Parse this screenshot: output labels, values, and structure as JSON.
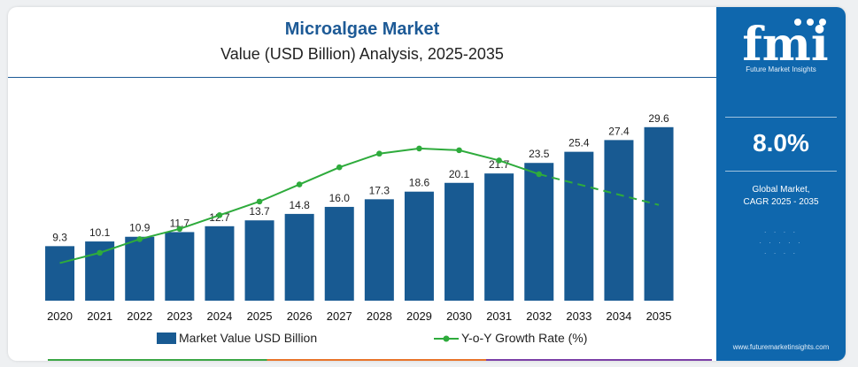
{
  "header": {
    "title": "Microalgae Market",
    "subtitle": "Value (USD Billion) Analysis, 2025-2035"
  },
  "side_panel": {
    "logo_text": "fmi",
    "logo_caption": "Future Market Insights",
    "cagr_value": "8.0%",
    "cagr_label_line1": "Global Market,",
    "cagr_label_line2": "CAGR 2025 - 2035",
    "website": "www.futuremarketinsights.com",
    "background_color": "#0f67ad"
  },
  "colors": {
    "bar": "#185a92",
    "line": "#2eab3c",
    "title": "#1d5a96"
  },
  "chart_data": {
    "type": "bar",
    "categories": [
      "2020",
      "2021",
      "2022",
      "2023",
      "2024",
      "2025",
      "2026",
      "2027",
      "2028",
      "2029",
      "2030",
      "2031",
      "2032",
      "2033",
      "2034",
      "2035"
    ],
    "series": [
      {
        "name": "Market Value USD Billion",
        "type": "bar",
        "values": [
          9.3,
          10.1,
          10.9,
          11.7,
          12.7,
          13.7,
          14.8,
          16.0,
          17.3,
          18.6,
          20.1,
          21.7,
          23.5,
          25.4,
          27.4,
          29.6
        ],
        "labels": [
          "9.3",
          "10.1",
          "10.9",
          "11.7",
          "12.7",
          "13.7",
          "14.8",
          "16.0",
          "17.3",
          "18.6",
          "20.1",
          "21.7",
          "23.5",
          "25.4",
          "27.4",
          "29.6"
        ]
      },
      {
        "name": "Y-o-Y Growth Rate (%)",
        "type": "line",
        "values": [
          6.3,
          6.6,
          7.0,
          7.3,
          7.7,
          8.1,
          8.6,
          9.1,
          9.5,
          9.65,
          9.6,
          9.3,
          8.9,
          8.6,
          8.3,
          8.0
        ]
      }
    ],
    "ylim": [
      0,
      35
    ],
    "y2lim": [
      5.2,
      11.2
    ],
    "grid": false,
    "legend": "bottom"
  }
}
